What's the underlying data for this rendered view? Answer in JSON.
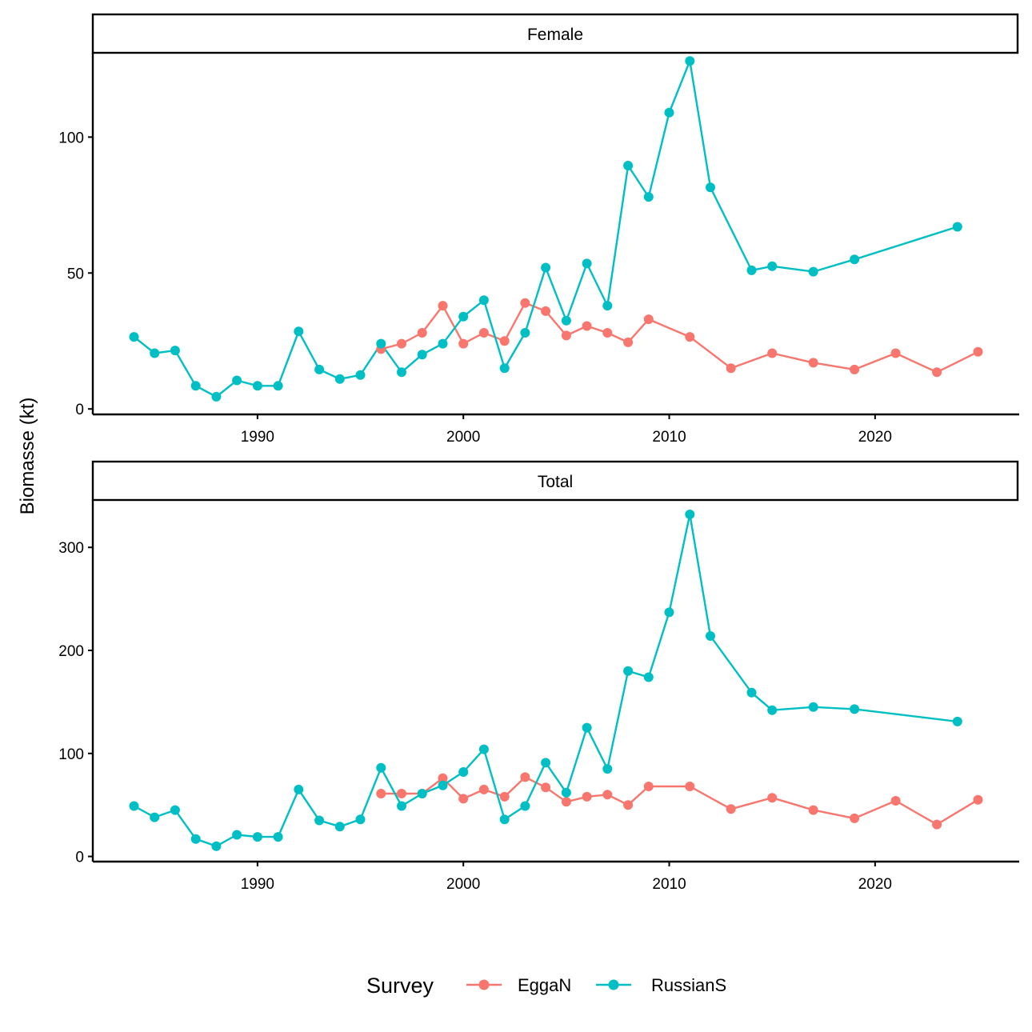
{
  "chart_data": {
    "type": "line",
    "ylabel": "Biomasse (kt)",
    "xlabel": "",
    "xlim": [
      1982,
      2027
    ],
    "x_ticks": [
      1990,
      2000,
      2010,
      2020
    ],
    "legend": {
      "title": "Survey",
      "position": "bottom",
      "entries": [
        {
          "label": "EggaN",
          "color": "#F8766D"
        },
        {
          "label": "RussianS",
          "color": "#00BFC4"
        }
      ]
    },
    "grid": false,
    "panels": [
      {
        "title": "Female",
        "ylim": [
          -2,
          131
        ],
        "y_ticks": [
          0,
          50,
          100
        ],
        "series": [
          {
            "name": "EggaN",
            "color": "#F8766D",
            "x": [
              1996,
              1997,
              1998,
              1999,
              2000,
              2001,
              2002,
              2003,
              2004,
              2005,
              2006,
              2007,
              2008,
              2009,
              2011,
              2013,
              2015,
              2017,
              2019,
              2021,
              2023,
              2025
            ],
            "y": [
              22,
              24,
              28,
              38,
              24,
              28,
              25,
              39,
              36,
              27,
              30.5,
              28,
              24.5,
              33,
              26.5,
              15,
              20.5,
              17,
              14.5,
              20.5,
              13.5,
              21
            ]
          },
          {
            "name": "RussianS",
            "color": "#00BFC4",
            "x": [
              1984,
              1985,
              1986,
              1987,
              1988,
              1989,
              1990,
              1991,
              1992,
              1993,
              1994,
              1995,
              1996,
              1997,
              1998,
              1999,
              2000,
              2001,
              2002,
              2003,
              2004,
              2005,
              2006,
              2007,
              2008,
              2009,
              2010,
              2011,
              2012,
              2014,
              2015,
              2017,
              2019,
              2024
            ],
            "y": [
              26.5,
              20.5,
              21.5,
              8.5,
              4.5,
              10.5,
              8.5,
              8.5,
              28.5,
              14.5,
              11,
              12.5,
              24,
              13.5,
              20,
              24,
              34,
              40,
              15,
              28,
              52,
              32.5,
              53.5,
              38,
              89.5,
              78,
              109,
              128,
              81.5,
              51,
              52.5,
              50.5,
              55,
              67
            ]
          }
        ]
      },
      {
        "title": "Total",
        "ylim": [
          -5,
          346
        ],
        "y_ticks": [
          0,
          100,
          200,
          300
        ],
        "series": [
          {
            "name": "EggaN",
            "color": "#F8766D",
            "x": [
              1996,
              1997,
              1998,
              1999,
              2000,
              2001,
              2002,
              2003,
              2004,
              2005,
              2006,
              2007,
              2008,
              2009,
              2011,
              2013,
              2015,
              2017,
              2019,
              2021,
              2023,
              2025
            ],
            "y": [
              61,
              61,
              61,
              76,
              56,
              65,
              58,
              77,
              67,
              53,
              58,
              60,
              50,
              68,
              68,
              46,
              57,
              45,
              37,
              54,
              31,
              55
            ]
          },
          {
            "name": "RussianS",
            "color": "#00BFC4",
            "x": [
              1984,
              1985,
              1986,
              1987,
              1988,
              1989,
              1990,
              1991,
              1992,
              1993,
              1994,
              1995,
              1996,
              1997,
              1998,
              1999,
              2000,
              2001,
              2002,
              2003,
              2004,
              2005,
              2006,
              2007,
              2008,
              2009,
              2010,
              2011,
              2012,
              2014,
              2015,
              2017,
              2019,
              2024
            ],
            "y": [
              49,
              38,
              45,
              17,
              10,
              21,
              19,
              19,
              65,
              35,
              29,
              36,
              86,
              49,
              61,
              69,
              82,
              104,
              36,
              49,
              91,
              62,
              125,
              85,
              180,
              174,
              237,
              332,
              214,
              159,
              142,
              145,
              143,
              131
            ]
          }
        ]
      }
    ]
  }
}
